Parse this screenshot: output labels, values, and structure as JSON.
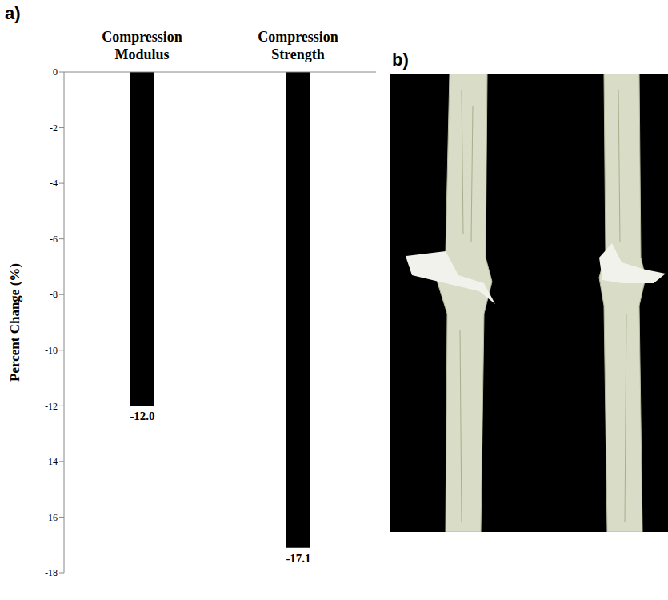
{
  "chart_data": {
    "type": "bar",
    "panel_label": "a)",
    "categories": [
      "Compression Modulus",
      "Compression Strength"
    ],
    "values": [
      -12.0,
      -17.1
    ],
    "value_labels": [
      "-12.0",
      "-17.1"
    ],
    "data_labels": true,
    "color": "#000000",
    "ylabel": "Percent Change (%)",
    "ylim": [
      -18,
      0
    ],
    "yticks": [
      0,
      -2,
      -4,
      -6,
      -8,
      -10,
      -12,
      -14,
      -16,
      -18
    ],
    "grid": false,
    "legend": "none"
  },
  "image_panel": {
    "label": "b)"
  }
}
